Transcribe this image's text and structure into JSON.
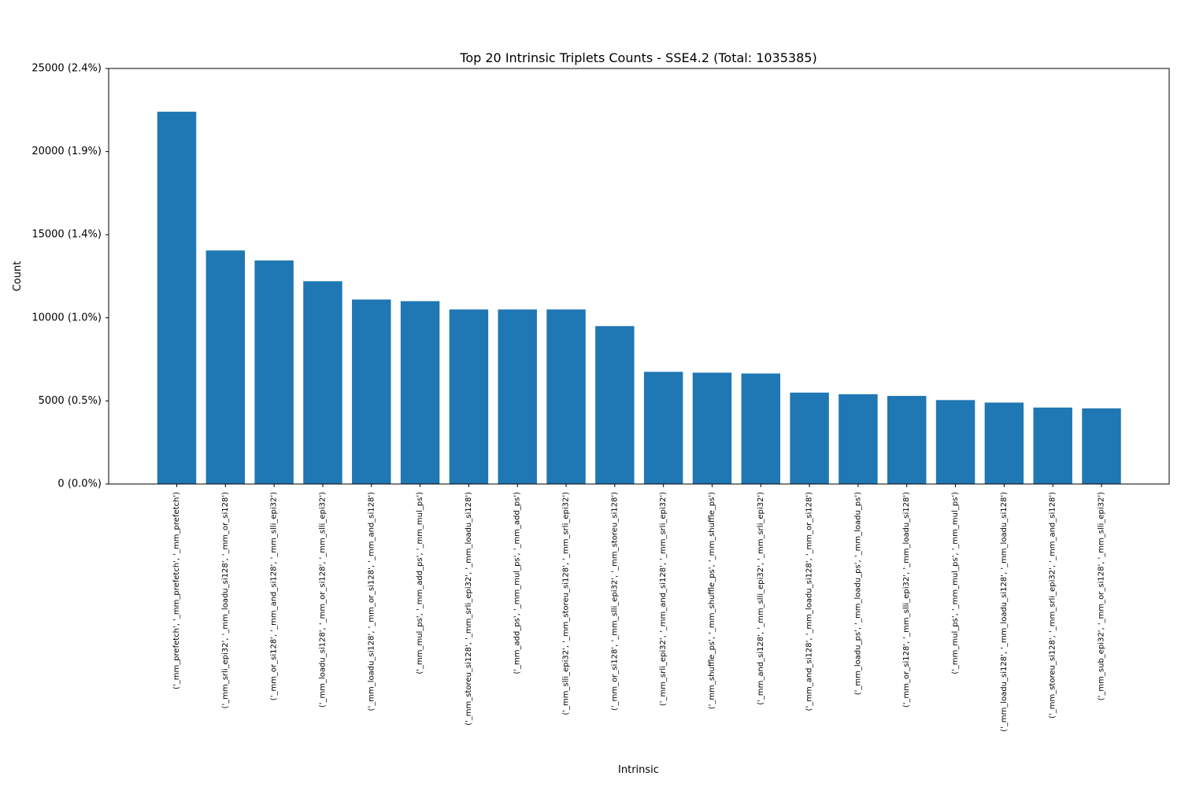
{
  "chart_data": {
    "type": "bar",
    "title": "Top 20 Intrinsic Triplets Counts - SSE4.2 (Total: 1035385)",
    "xlabel": "Intrinsic",
    "ylabel": "Count",
    "ylim": [
      0,
      25000
    ],
    "grid": false,
    "bar_color": "#1f77b4",
    "yticks": [
      {
        "value": 0,
        "label": "0 (0.0%)"
      },
      {
        "value": 5000,
        "label": "5000 (0.5%)"
      },
      {
        "value": 10000,
        "label": "10000 (1.0%)"
      },
      {
        "value": 15000,
        "label": "15000 (1.4%)"
      },
      {
        "value": 20000,
        "label": "20000 (1.9%)"
      },
      {
        "value": 25000,
        "label": "25000 (2.4%)"
      }
    ],
    "categories": [
      "('_mm_prefetch', '_mm_prefetch', '_mm_prefetch')",
      "('_mm_srli_epi32', '_mm_loadu_si128', '_mm_or_si128')",
      "('_mm_or_si128', '_mm_and_si128', '_mm_slli_epi32')",
      "('_mm_loadu_si128', '_mm_or_si128', '_mm_slli_epi32')",
      "('_mm_loadu_si128', '_mm_or_si128', '_mm_and_si128')",
      "('_mm_mul_ps', '_mm_add_ps', '_mm_mul_ps')",
      "('_mm_storeu_si128', '_mm_srli_epi32', '_mm_loadu_si128')",
      "('_mm_add_ps', '_mm_mul_ps', '_mm_add_ps')",
      "('_mm_slli_epi32', '_mm_storeu_si128', '_mm_srli_epi32')",
      "('_mm_or_si128', '_mm_slli_epi32', '_mm_storeu_si128')",
      "('_mm_srli_epi32', '_mm_and_si128', '_mm_srli_epi32')",
      "('_mm_shuffle_ps', '_mm_shuffle_ps', '_mm_shuffle_ps')",
      "('_mm_and_si128', '_mm_slli_epi32', '_mm_srli_epi32')",
      "('_mm_and_si128', '_mm_loadu_si128', '_mm_or_si128')",
      "('_mm_loadu_ps', '_mm_loadu_ps', '_mm_loadu_ps')",
      "('_mm_or_si128', '_mm_slli_epi32', '_mm_loadu_si128')",
      "('_mm_mul_ps', '_mm_mul_ps', '_mm_mul_ps')",
      "('_mm_loadu_si128', '_mm_loadu_si128', '_mm_loadu_si128')",
      "('_mm_storeu_si128', '_mm_srli_epi32', '_mm_and_si128')",
      "('_mm_sub_epi32', '_mm_or_si128', '_mm_slli_epi32')"
    ],
    "values": [
      22400,
      14050,
      13450,
      12200,
      11100,
      11000,
      10500,
      10500,
      10500,
      9500,
      6750,
      6700,
      6650,
      5500,
      5400,
      5300,
      5050,
      4900,
      4600,
      4550
    ]
  }
}
